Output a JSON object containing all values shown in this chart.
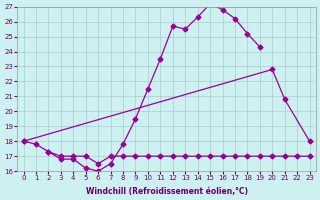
{
  "line1_x": [
    0,
    1,
    2,
    3,
    4,
    5,
    6,
    7,
    8,
    9,
    10,
    11,
    12,
    13,
    14,
    15,
    16,
    17,
    18,
    19
  ],
  "line1_y": [
    18.0,
    17.8,
    17.3,
    16.8,
    16.8,
    16.2,
    16.0,
    16.5,
    17.8,
    19.5,
    21.5,
    23.5,
    25.7,
    25.5,
    26.3,
    27.2,
    26.8,
    26.2,
    25.2,
    24.3
  ],
  "line2_x": [
    0,
    20,
    21,
    23
  ],
  "line2_y": [
    18.0,
    22.8,
    20.8,
    18.0
  ],
  "line3_x": [
    2,
    3,
    4,
    5,
    6,
    7,
    8,
    9,
    10,
    11,
    12,
    13,
    14,
    15,
    16,
    17,
    18,
    19,
    20,
    21,
    22,
    23
  ],
  "line3_y": [
    17.3,
    17.0,
    17.0,
    17.0,
    16.5,
    17.0,
    17.0,
    17.0,
    17.0,
    17.0,
    17.0,
    17.0,
    17.0,
    17.0,
    17.0,
    17.0,
    17.0,
    17.0,
    17.0,
    17.0,
    17.0,
    17.0
  ],
  "line_color": "#990099",
  "bg_color": "#cdf0f0",
  "grid_color": "#aacccc",
  "xlabel": "Windchill (Refroidissement éolien,°C)",
  "ylim": [
    16,
    27
  ],
  "xlim": [
    -0.5,
    23.5
  ],
  "yticks": [
    16,
    17,
    18,
    19,
    20,
    21,
    22,
    23,
    24,
    25,
    26,
    27
  ],
  "xticks": [
    0,
    1,
    2,
    3,
    4,
    5,
    6,
    7,
    8,
    9,
    10,
    11,
    12,
    13,
    14,
    15,
    16,
    17,
    18,
    19,
    20,
    21,
    22,
    23
  ],
  "tick_color": "#660066",
  "label_fontsize": 5.5,
  "tick_fontsize": 5.0
}
